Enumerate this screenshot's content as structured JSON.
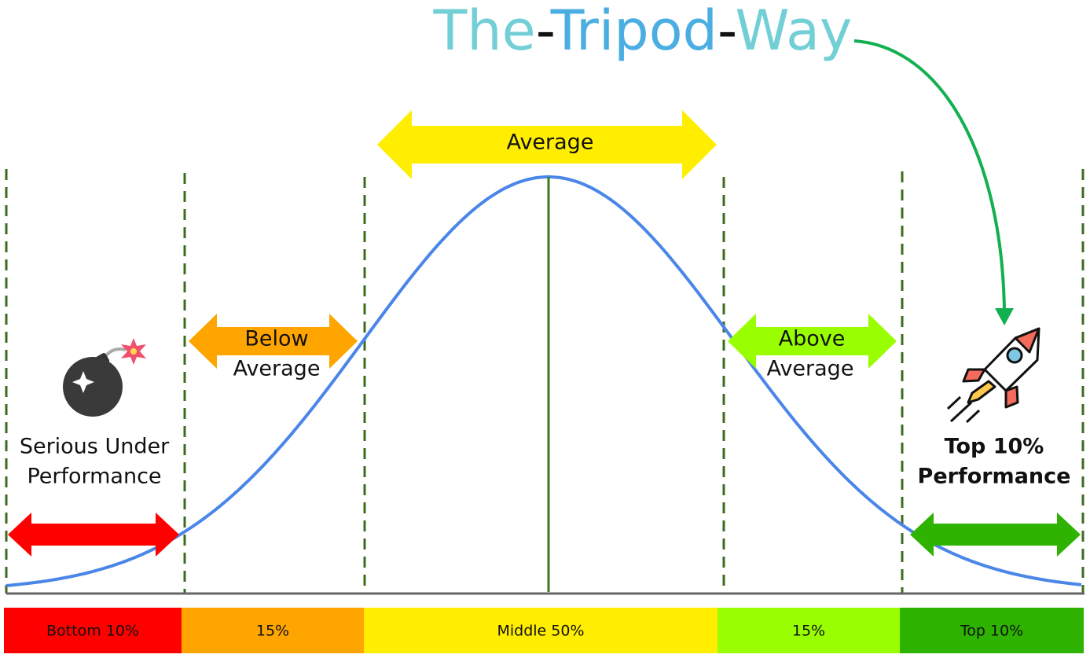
{
  "header": {
    "title_parts": [
      "The",
      "-",
      "Tripod",
      "-",
      "Way"
    ]
  },
  "arrows": [
    {
      "label_lines": [
        "Average"
      ]
    },
    {
      "label_lines": [
        "Below",
        "Average"
      ]
    },
    {
      "label_lines": [
        "Above",
        "Average"
      ]
    }
  ],
  "annotations": {
    "left": [
      "Serious Under",
      "Performance"
    ],
    "right": [
      "Top 10%",
      "Performance"
    ]
  },
  "scale": {
    "segments": [
      "Bottom 10%",
      "15%",
      "Middle 50%",
      "15%",
      "Top 10%"
    ]
  }
}
